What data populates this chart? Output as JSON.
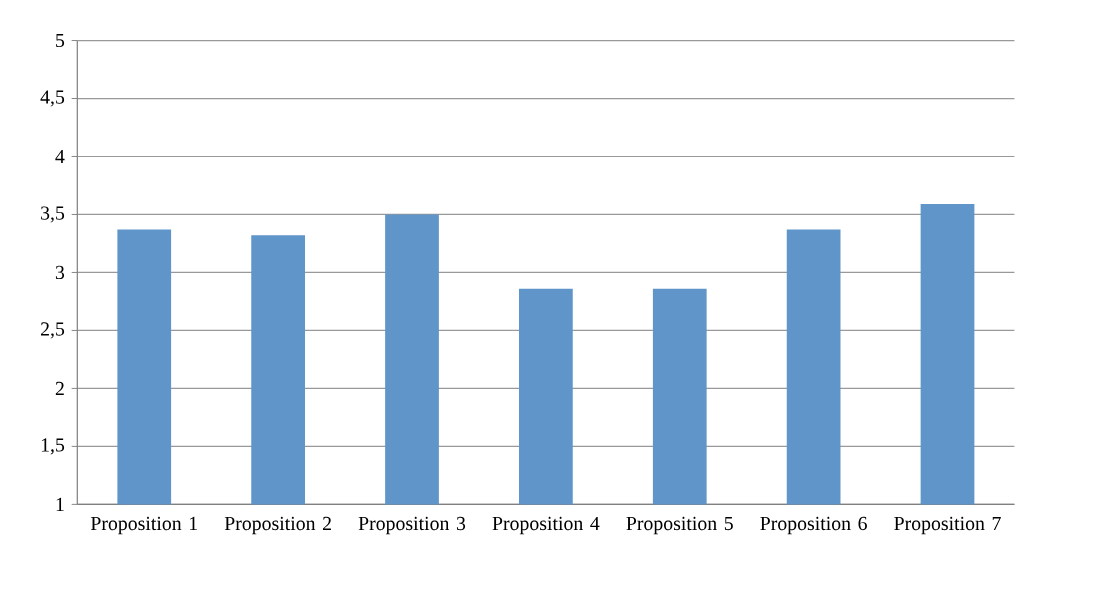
{
  "chart_data": {
    "type": "bar",
    "categories": [
      "Proposition 1",
      "Proposition 2",
      "Proposition 3",
      "Proposition 4",
      "Proposition 5",
      "Proposition 6",
      "Proposition 7"
    ],
    "values": [
      3.37,
      3.32,
      3.5,
      2.86,
      2.86,
      3.37,
      3.59
    ],
    "color": "#5f95c9",
    "ylim": [
      1,
      5
    ],
    "yticks": [
      1,
      {
        "value": 1.5,
        "label": "1,5"
      },
      2,
      {
        "value": 2.5,
        "label": "2,5"
      },
      3,
      {
        "value": 3.5,
        "label": "3,5"
      },
      4,
      {
        "value": 4.5,
        "label": "4,5"
      },
      5
    ],
    "grid": "y"
  }
}
